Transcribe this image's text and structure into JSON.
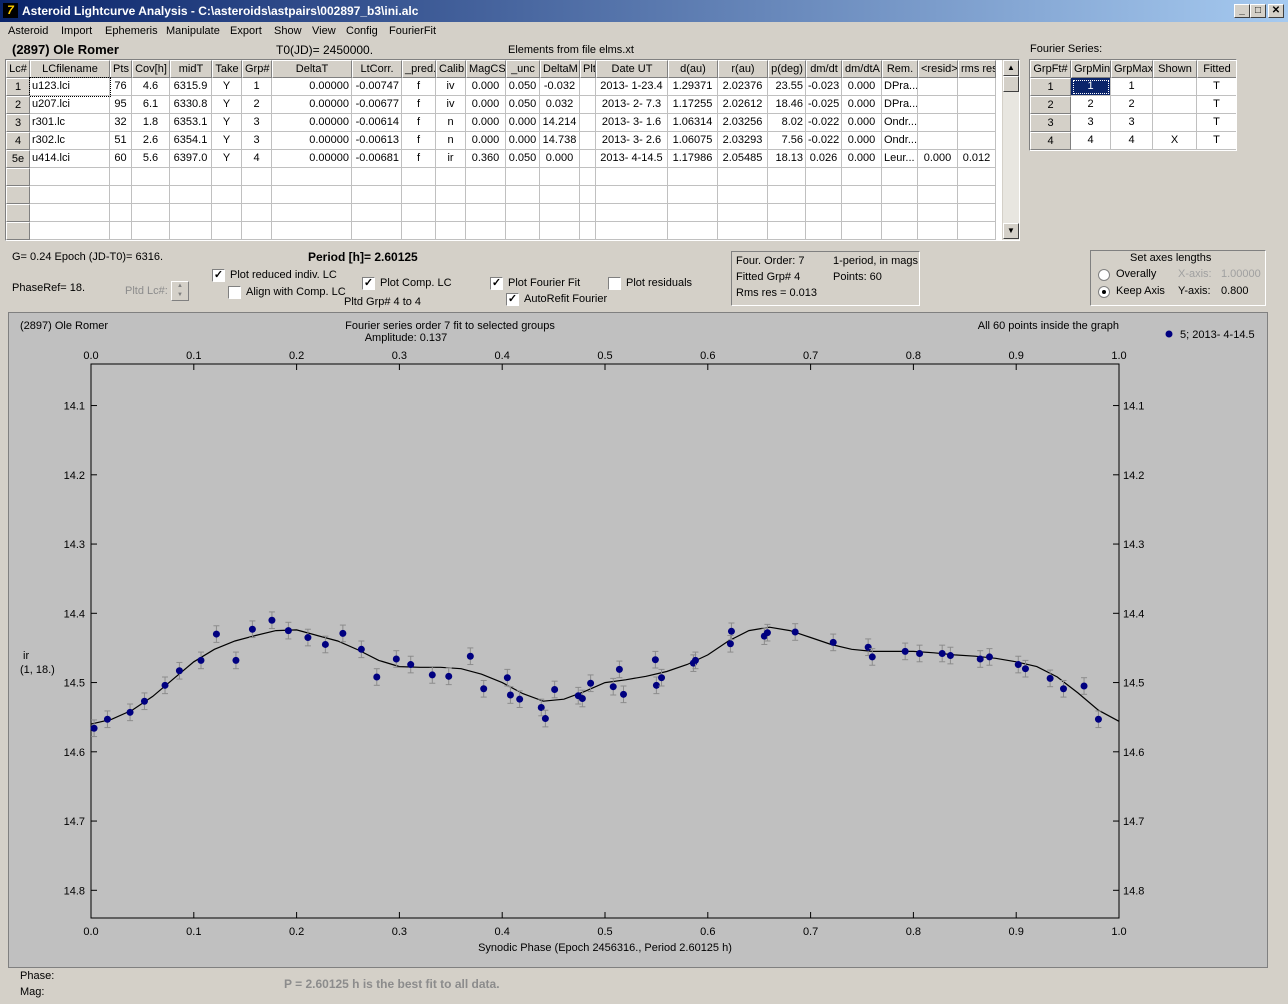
{
  "window": {
    "title": "Asteroid Lightcurve Analysis - C:\\asteroids\\astpairs\\002897_b3\\ini.alc",
    "buttons": [
      "_",
      "□",
      "✕"
    ]
  },
  "menu": [
    "Asteroid",
    "Import",
    "Ephemeris",
    "Manipulate",
    "Export",
    "Show",
    "View",
    "Config",
    "FourierFit"
  ],
  "header": {
    "asteroid_name": "(2897) Ole Romer",
    "t0": "T0(JD)= 2450000.",
    "elements": "Elements from file elms.xt",
    "fourier_series_label": "Fourier Series:"
  },
  "lc_table": {
    "columns": [
      "Lc#",
      "LCfilename",
      "Pts",
      "Cov[h]",
      "midT",
      "Take",
      "Grp#",
      "DeltaT",
      "LtCorr.",
      "_pred.",
      "Calib.",
      "MagCS",
      "_unc",
      "DeltaM",
      "Plt",
      "Date UT",
      "d(au)",
      "r(au)",
      "p(deg)",
      "dm/dt",
      "dm/dtA",
      "Rem.",
      "<resid>",
      "rms res"
    ],
    "rows": [
      [
        "1",
        "u123.lci",
        "76",
        "4.6",
        "6315.9",
        "Y",
        "1",
        "0.00000",
        "-0.00747",
        "f",
        "iv",
        "0.000",
        "0.050",
        "-0.032",
        "",
        "2013- 1-23.4",
        "1.29371",
        "2.02376",
        "23.55",
        "-0.023",
        "0.000",
        "DPra...",
        "",
        ""
      ],
      [
        "2",
        "u207.lci",
        "95",
        "6.1",
        "6330.8",
        "Y",
        "2",
        "0.00000",
        "-0.00677",
        "f",
        "iv",
        "0.000",
        "0.050",
        "0.032",
        "",
        "2013- 2- 7.3",
        "1.17255",
        "2.02612",
        "18.46",
        "-0.025",
        "0.000",
        "DPra...",
        "",
        ""
      ],
      [
        "3",
        "r301.lc",
        "32",
        "1.8",
        "6353.1",
        "Y",
        "3",
        "0.00000",
        "-0.00614",
        "f",
        "n",
        "0.000",
        "0.000",
        "14.214",
        "",
        "2013- 3- 1.6",
        "1.06314",
        "2.03256",
        "8.02",
        "-0.022",
        "0.000",
        "Ondr...",
        "",
        ""
      ],
      [
        "4",
        "r302.lc",
        "51",
        "2.6",
        "6354.1",
        "Y",
        "3",
        "0.00000",
        "-0.00613",
        "f",
        "n",
        "0.000",
        "0.000",
        "14.738",
        "",
        "2013- 3- 2.6",
        "1.06075",
        "2.03293",
        "7.56",
        "-0.022",
        "0.000",
        "Ondr...",
        "",
        ""
      ],
      [
        "5e",
        "u414.lci",
        "60",
        "5.6",
        "6397.0",
        "Y",
        "4",
        "0.00000",
        "-0.00681",
        "f",
        "ir",
        "0.360",
        "0.050",
        "0.000",
        "",
        "2013- 4-14.5",
        "1.17986",
        "2.05485",
        "18.13",
        "0.026",
        "0.000",
        "Leur...",
        "0.000",
        "0.012"
      ]
    ]
  },
  "fourier_table": {
    "columns": [
      "GrpFt#",
      "GrpMin",
      "GrpMax",
      "Shown",
      "Fitted"
    ],
    "rows": [
      [
        "1",
        "1",
        "1",
        "",
        "T"
      ],
      [
        "2",
        "2",
        "2",
        "",
        "T"
      ],
      [
        "3",
        "3",
        "3",
        "",
        "T"
      ],
      [
        "4",
        "4",
        "4",
        "X",
        "T"
      ]
    ]
  },
  "controls": {
    "g_epoch": "G= 0.24   Epoch (JD-T0)= 6316.",
    "period": "Period [h]= 2.60125",
    "phase_ref": "PhaseRef= 18.",
    "pltd_lc": "Pltd Lc#:",
    "plot_reduced": "Plot reduced indiv. LC",
    "align_comp": "Align with Comp. LC",
    "plot_comp": "Plot Comp. LC",
    "pltd_grp": "Pltd Grp#  4   to   4",
    "plot_fourier": "Plot Fourier Fit",
    "autorefit": "AutoRefit Fourier",
    "plot_residuals": "Plot residuals",
    "info_four_order": "Four. Order:  7",
    "info_period_mode": "1-period, in mags",
    "info_fitted_grp": "Fitted Grp# 4",
    "info_points": "Points: 60",
    "info_rms": "Rms res      = 0.013",
    "axes_title": "Set axes lengths",
    "overally": "Overally",
    "keep_axis": "Keep Axis",
    "x_axis_label": "X-axis:",
    "x_axis_value": "1.00000",
    "y_axis_label": "Y-axis:",
    "y_axis_value": "0.800",
    "checks": {
      "plot_reduced": true,
      "align_comp": false,
      "plot_comp": true,
      "plot_fourier": true,
      "autorefit": true,
      "plot_residuals": false
    },
    "radio_selected": "keep_axis"
  },
  "footer": {
    "phase": "Phase:",
    "mag": "Mag:",
    "status": "P = 2.60125 h is the best fit to all data."
  },
  "chart_data": {
    "type": "scatter",
    "object_label": "(2897) Ole Romer",
    "title": "Fourier series order 7 fit to selected groups",
    "subtitle": "Amplitude: 0.137",
    "note": "All 60 points inside the graph",
    "legend": "5; 2013- 4-14.5",
    "legend_position": "top-right",
    "xlabel": "Synodic Phase (Epoch 2456316., Period 2.60125 h)",
    "ylabel": "ir",
    "ylabel2": "(1, 18.)",
    "xlim": [
      0.0,
      1.0
    ],
    "ylim": [
      14.04,
      14.84
    ],
    "y_inverted": true,
    "x_ticks": [
      "0.0",
      "0.1",
      "0.2",
      "0.3",
      "0.4",
      "0.5",
      "0.6",
      "0.7",
      "0.8",
      "0.9",
      "1.0"
    ],
    "y_ticks": [
      "14.1",
      "14.2",
      "14.3",
      "14.4",
      "14.5",
      "14.6",
      "14.7",
      "14.8"
    ],
    "grid": false,
    "colors": {
      "points": "#000080",
      "errorbars": "#8c8c8c",
      "fit": "#000000",
      "background": "#c0c0c0"
    },
    "points": [
      [
        0.003,
        14.566
      ],
      [
        0.016,
        14.553
      ],
      [
        0.038,
        14.543
      ],
      [
        0.052,
        14.527
      ],
      [
        0.072,
        14.504
      ],
      [
        0.086,
        14.483
      ],
      [
        0.107,
        14.468
      ],
      [
        0.122,
        14.43
      ],
      [
        0.141,
        14.468
      ],
      [
        0.157,
        14.423
      ],
      [
        0.176,
        14.41
      ],
      [
        0.192,
        14.425
      ],
      [
        0.211,
        14.435
      ],
      [
        0.228,
        14.445
      ],
      [
        0.245,
        14.429
      ],
      [
        0.263,
        14.452
      ],
      [
        0.278,
        14.492
      ],
      [
        0.297,
        14.466
      ],
      [
        0.311,
        14.474
      ],
      [
        0.332,
        14.489
      ],
      [
        0.348,
        14.491
      ],
      [
        0.369,
        14.462
      ],
      [
        0.382,
        14.509
      ],
      [
        0.405,
        14.493
      ],
      [
        0.408,
        14.518
      ],
      [
        0.417,
        14.524
      ],
      [
        0.438,
        14.536
      ],
      [
        0.442,
        14.552
      ],
      [
        0.451,
        14.51
      ],
      [
        0.474,
        14.519
      ],
      [
        0.478,
        14.523
      ],
      [
        0.486,
        14.501
      ],
      [
        0.508,
        14.506
      ],
      [
        0.514,
        14.481
      ],
      [
        0.518,
        14.517
      ],
      [
        0.549,
        14.467
      ],
      [
        0.55,
        14.504
      ],
      [
        0.555,
        14.493
      ],
      [
        0.586,
        14.472
      ],
      [
        0.588,
        14.468
      ],
      [
        0.622,
        14.444
      ],
      [
        0.623,
        14.426
      ],
      [
        0.655,
        14.433
      ],
      [
        0.658,
        14.428
      ],
      [
        0.685,
        14.427
      ],
      [
        0.722,
        14.442
      ],
      [
        0.756,
        14.449
      ],
      [
        0.76,
        14.463
      ],
      [
        0.792,
        14.455
      ],
      [
        0.806,
        14.458
      ],
      [
        0.828,
        14.458
      ],
      [
        0.836,
        14.461
      ],
      [
        0.865,
        14.466
      ],
      [
        0.874,
        14.463
      ],
      [
        0.902,
        14.474
      ],
      [
        0.909,
        14.48
      ],
      [
        0.933,
        14.494
      ],
      [
        0.946,
        14.509
      ],
      [
        0.966,
        14.505
      ],
      [
        0.98,
        14.553
      ]
    ],
    "fit": [
      [
        0.0,
        14.56
      ],
      [
        0.02,
        14.553
      ],
      [
        0.04,
        14.54
      ],
      [
        0.06,
        14.52
      ],
      [
        0.08,
        14.495
      ],
      [
        0.1,
        14.47
      ],
      [
        0.12,
        14.452
      ],
      [
        0.14,
        14.44
      ],
      [
        0.16,
        14.432
      ],
      [
        0.18,
        14.425
      ],
      [
        0.2,
        14.424
      ],
      [
        0.22,
        14.432
      ],
      [
        0.24,
        14.44
      ],
      [
        0.26,
        14.453
      ],
      [
        0.28,
        14.468
      ],
      [
        0.3,
        14.477
      ],
      [
        0.32,
        14.478
      ],
      [
        0.34,
        14.478
      ],
      [
        0.36,
        14.48
      ],
      [
        0.38,
        14.488
      ],
      [
        0.4,
        14.5
      ],
      [
        0.42,
        14.516
      ],
      [
        0.44,
        14.527
      ],
      [
        0.46,
        14.524
      ],
      [
        0.48,
        14.513
      ],
      [
        0.5,
        14.5
      ],
      [
        0.52,
        14.496
      ],
      [
        0.54,
        14.491
      ],
      [
        0.56,
        14.484
      ],
      [
        0.58,
        14.474
      ],
      [
        0.6,
        14.46
      ],
      [
        0.62,
        14.44
      ],
      [
        0.64,
        14.425
      ],
      [
        0.66,
        14.42
      ],
      [
        0.68,
        14.425
      ],
      [
        0.7,
        14.435
      ],
      [
        0.72,
        14.445
      ],
      [
        0.74,
        14.452
      ],
      [
        0.76,
        14.455
      ],
      [
        0.78,
        14.455
      ],
      [
        0.8,
        14.455
      ],
      [
        0.82,
        14.457
      ],
      [
        0.84,
        14.46
      ],
      [
        0.86,
        14.462
      ],
      [
        0.88,
        14.465
      ],
      [
        0.9,
        14.47
      ],
      [
        0.92,
        14.477
      ],
      [
        0.94,
        14.492
      ],
      [
        0.96,
        14.515
      ],
      [
        0.98,
        14.54
      ],
      [
        1.0,
        14.556
      ]
    ]
  }
}
